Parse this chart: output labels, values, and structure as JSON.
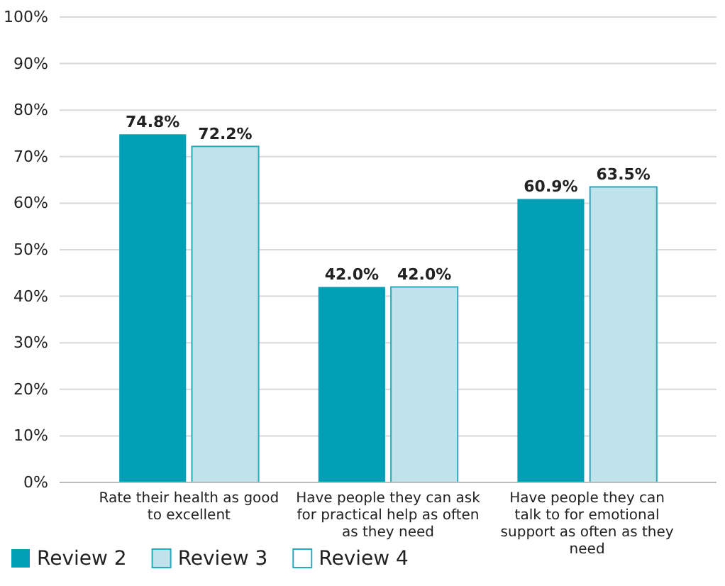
{
  "chart_data": {
    "type": "bar",
    "categories": [
      "Rate their health as good to excellent",
      "Have people they can ask for practical help as often as they need",
      "Have people they can talk to for emotional support as often as they need"
    ],
    "series": [
      {
        "name": "Review 2",
        "color": "#009fb5",
        "values": [
          74.8,
          42.0,
          60.9
        ]
      },
      {
        "name": "Review 3",
        "color": "#c0e3eb",
        "values": [
          72.2,
          42.0,
          63.5
        ]
      },
      {
        "name": "Review 4",
        "color": "#ffffff",
        "values": [
          null,
          null,
          null
        ]
      }
    ],
    "ylim": [
      0,
      100
    ],
    "yticks": [
      {
        "value": 0,
        "label": "0%"
      },
      {
        "value": 10,
        "label": "10%"
      },
      {
        "value": 20,
        "label": "20%"
      },
      {
        "value": 30,
        "label": "30%"
      },
      {
        "value": 40,
        "label": "40%"
      },
      {
        "value": 50,
        "label": "50%"
      },
      {
        "value": 60,
        "label": "60%"
      },
      {
        "value": 70,
        "label": "70%"
      },
      {
        "value": 80,
        "label": "80%"
      },
      {
        "value": 90,
        "label": "90%"
      },
      {
        "value": 100,
        "label": "100%"
      }
    ],
    "value_labels": [
      [
        "74.8%",
        "42.0%",
        "60.9%"
      ],
      [
        "72.2%",
        "42.0%",
        "63.5%"
      ],
      [
        null,
        null,
        null
      ]
    ],
    "grid": "y",
    "legend": "bottom left"
  }
}
